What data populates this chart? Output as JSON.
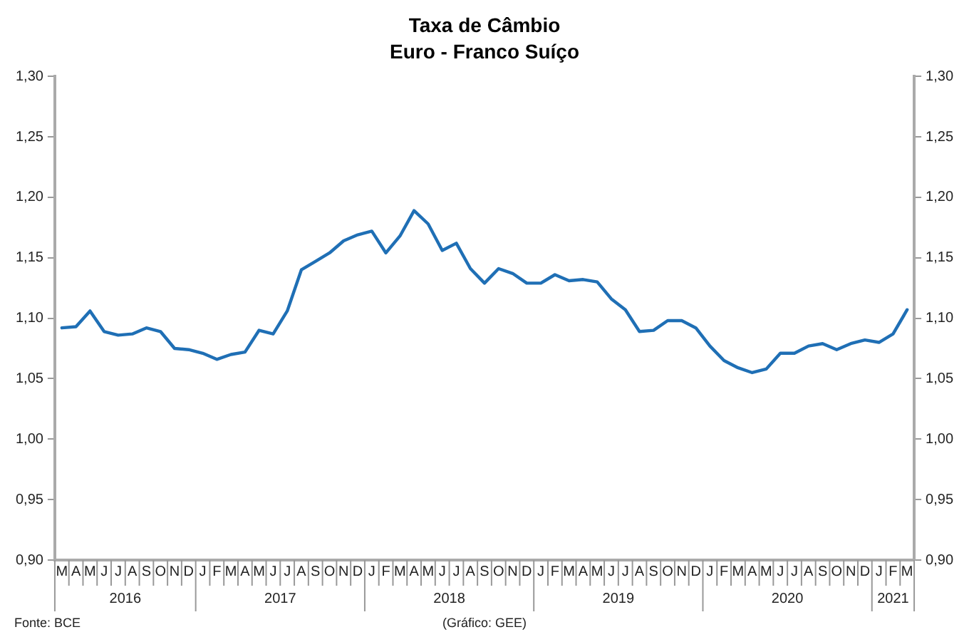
{
  "chart_data": {
    "type": "line",
    "title": "Taxa de Câmbio",
    "subtitle": "Euro - Franco Suíço",
    "categories": [
      "M",
      "A",
      "M",
      "J",
      "J",
      "A",
      "S",
      "O",
      "N",
      "D",
      "J",
      "F",
      "M",
      "A",
      "M",
      "J",
      "J",
      "A",
      "S",
      "O",
      "N",
      "D",
      "J",
      "F",
      "M",
      "A",
      "M",
      "J",
      "J",
      "A",
      "S",
      "O",
      "N",
      "D",
      "J",
      "F",
      "M",
      "A",
      "M",
      "J",
      "J",
      "A",
      "S",
      "O",
      "N",
      "D",
      "J",
      "F",
      "M",
      "A",
      "M",
      "J",
      "J",
      "A",
      "S",
      "O",
      "N",
      "D",
      "J",
      "F",
      "M"
    ],
    "series": [
      {
        "color": "#1f6fb5",
        "values": [
          1.092,
          1.093,
          1.106,
          1.089,
          1.086,
          1.087,
          1.092,
          1.089,
          1.075,
          1.074,
          1.071,
          1.066,
          1.07,
          1.072,
          1.09,
          1.087,
          1.106,
          1.14,
          1.147,
          1.154,
          1.164,
          1.169,
          1.172,
          1.154,
          1.168,
          1.189,
          1.178,
          1.156,
          1.162,
          1.141,
          1.129,
          1.141,
          1.137,
          1.129,
          1.129,
          1.136,
          1.131,
          1.132,
          1.13,
          1.116,
          1.107,
          1.089,
          1.09,
          1.098,
          1.098,
          1.092,
          1.077,
          1.065,
          1.059,
          1.055,
          1.058,
          1.071,
          1.071,
          1.077,
          1.079,
          1.074,
          1.079,
          1.082,
          1.08,
          1.087,
          1.107
        ]
      }
    ],
    "ylim": [
      0.9,
      1.3
    ],
    "yticks": [
      {
        "value": 0.9,
        "label": "0,90"
      },
      {
        "value": 0.95,
        "label": "0,95"
      },
      {
        "value": 1.0,
        "label": "1,00"
      },
      {
        "value": 1.05,
        "label": "1,05"
      },
      {
        "value": 1.1,
        "label": "1,10"
      },
      {
        "value": 1.15,
        "label": "1,15"
      },
      {
        "value": 1.2,
        "label": "1,20"
      },
      {
        "value": 1.25,
        "label": "1,25"
      },
      {
        "value": 1.3,
        "label": "1,30"
      }
    ],
    "y2lim": [
      0.9,
      1.3
    ],
    "y2ticks": [
      {
        "value": 0.9,
        "label": "0,90"
      },
      {
        "value": 0.95,
        "label": "0,95"
      },
      {
        "value": 1.0,
        "label": "1,00"
      },
      {
        "value": 1.05,
        "label": "1,05"
      },
      {
        "value": 1.1,
        "label": "1,10"
      },
      {
        "value": 1.15,
        "label": "1,15"
      },
      {
        "value": 1.2,
        "label": "1,20"
      },
      {
        "value": 1.25,
        "label": "1,25"
      },
      {
        "value": 1.3,
        "label": "1,30"
      }
    ],
    "grid": false,
    "legend": false,
    "marker": "none",
    "line_style": "solid",
    "annotations": [
      "Fonte: BCE",
      "(Gráfico: GEE)",
      "2016",
      "2017",
      "2018",
      "2019",
      "2020",
      "2021"
    ]
  }
}
